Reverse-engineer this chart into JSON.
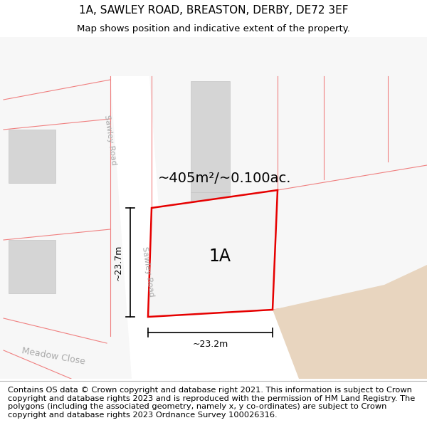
{
  "title_line1": "1A, SAWLEY ROAD, BREASTON, DERBY, DE72 3EF",
  "title_line2": "Map shows position and indicative extent of the property.",
  "footer_text": "Contains OS data © Crown copyright and database right 2021. This information is subject to Crown copyright and database rights 2023 and is reproduced with the permission of HM Land Registry. The polygons (including the associated geometry, namely x, y co-ordinates) are subject to Crown copyright and database rights 2023 Ordnance Survey 100026316.",
  "area_label": "~405m²/~0.100ac.",
  "property_label": "1A",
  "dim_horizontal": "~23.2m",
  "dim_vertical": "~23.7m",
  "road_label_1": "Sawley Road",
  "road_label_2": "Sawley Road",
  "street_label": "Meadow Close",
  "title_fontsize": 11,
  "subtitle_fontsize": 9.5,
  "footer_fontsize": 8.2,
  "area_fontsize": 14,
  "label_fontsize": 17,
  "dim_fontsize": 9,
  "road_fontsize": 8,
  "street_fontsize": 9
}
